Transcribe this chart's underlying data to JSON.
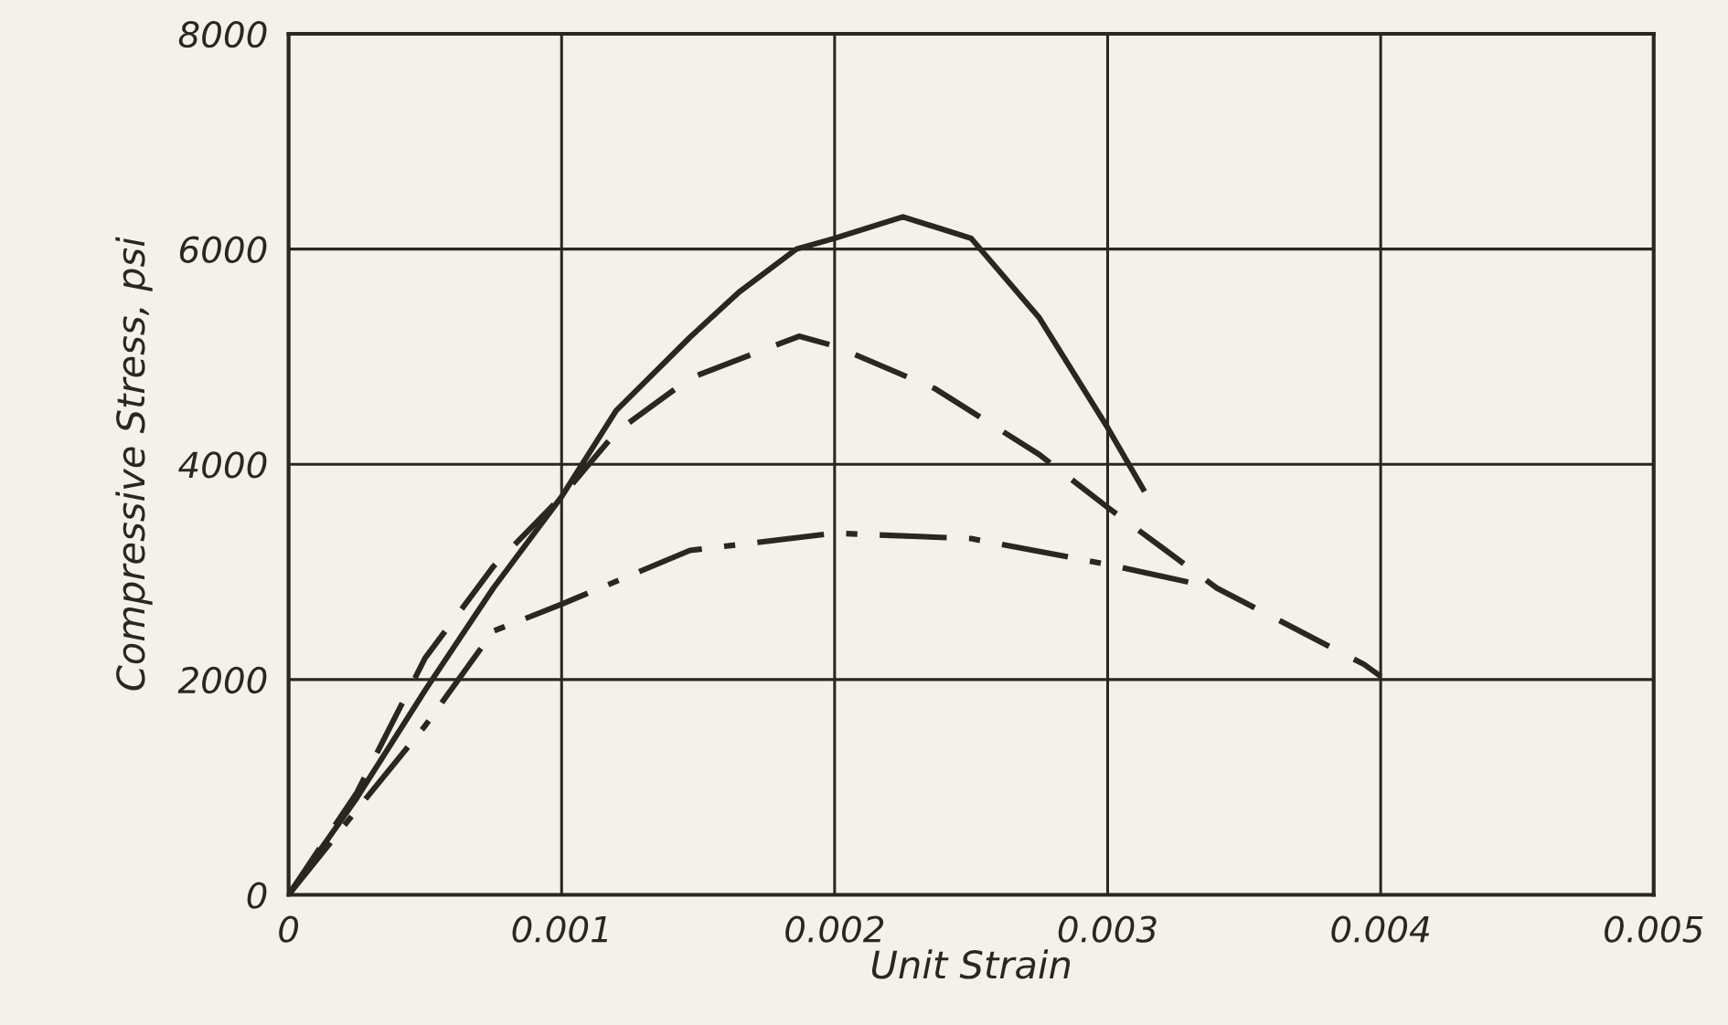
{
  "chart_data": {
    "type": "line",
    "xlabel": "Unit Strain",
    "ylabel": "Compressive Stress, psi",
    "xlim": [
      0,
      0.005
    ],
    "ylim": [
      0,
      8000
    ],
    "xticks": [
      0,
      0.001,
      0.002,
      0.003,
      0.004,
      0.005
    ],
    "yticks": [
      0,
      2000,
      4000,
      6000,
      8000
    ],
    "grid": true,
    "marker": "none",
    "series": [
      {
        "color": "#2a2622",
        "line_style": "solid",
        "x": [
          0,
          0.00025,
          0.0005,
          0.00075,
          0.001,
          0.0012,
          0.00147,
          0.00165,
          0.00186,
          0.002,
          0.00225,
          0.0025,
          0.00275,
          0.003,
          0.00313
        ],
        "values": [
          0,
          900,
          1900,
          2850,
          3700,
          4500,
          5180,
          5600,
          6000,
          6100,
          6300,
          6100,
          5360,
          4340,
          3770
        ]
      },
      {
        "color": "#2a2622",
        "line_style": "dashed",
        "x": [
          0,
          0.00025,
          0.0005,
          0.00075,
          0.001,
          0.0012,
          0.00147,
          0.00187,
          0.002,
          0.00237,
          0.00275,
          0.003,
          0.0034,
          0.00394,
          0.004
        ],
        "values": [
          0,
          950,
          2200,
          3050,
          3700,
          4300,
          4800,
          5190,
          5100,
          4700,
          4090,
          3600,
          2850,
          2140,
          2030
        ]
      },
      {
        "color": "#2a2622",
        "line_style": "dashdot",
        "x": [
          0,
          0.00025,
          0.0005,
          0.00075,
          0.001,
          0.00147,
          0.002,
          0.0025,
          0.003,
          0.00336
        ],
        "values": [
          0,
          790,
          1570,
          2450,
          2700,
          3200,
          3360,
          3310,
          3070,
          2870
        ]
      }
    ]
  }
}
